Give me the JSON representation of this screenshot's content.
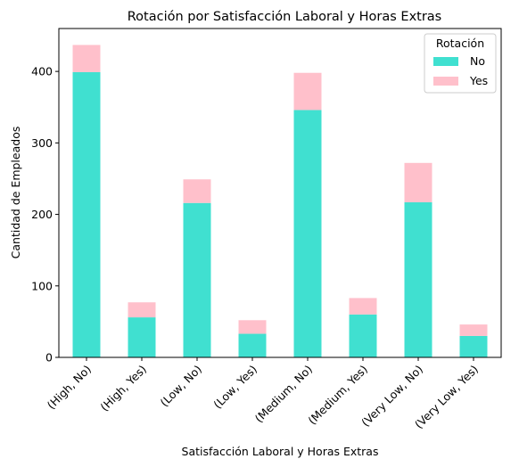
{
  "chart_data": {
    "type": "bar",
    "stacked": true,
    "title": "Rotación por Satisfacción Laboral y Horas Extras",
    "xlabel": "Satisfacción Laboral y Horas Extras",
    "ylabel": "Cantidad de Empleados",
    "ylim": [
      0,
      460
    ],
    "yticks": [
      0,
      100,
      200,
      300,
      400
    ],
    "categories": [
      "(High, No)",
      "(High, Yes)",
      "(Low, No)",
      "(Low, Yes)",
      "(Medium, No)",
      "(Medium, Yes)",
      "(Very Low, No)",
      "(Very Low, Yes)"
    ],
    "series": [
      {
        "name": "No",
        "color": "#40e0d0",
        "values": [
          399,
          56,
          216,
          33,
          346,
          60,
          217,
          30
        ]
      },
      {
        "name": "Yes",
        "color": "#ffc0cb",
        "values": [
          38,
          21,
          33,
          19,
          52,
          23,
          55,
          16
        ]
      }
    ],
    "legend": {
      "title": "Rotación",
      "placement": "top-right"
    },
    "grid": false
  }
}
